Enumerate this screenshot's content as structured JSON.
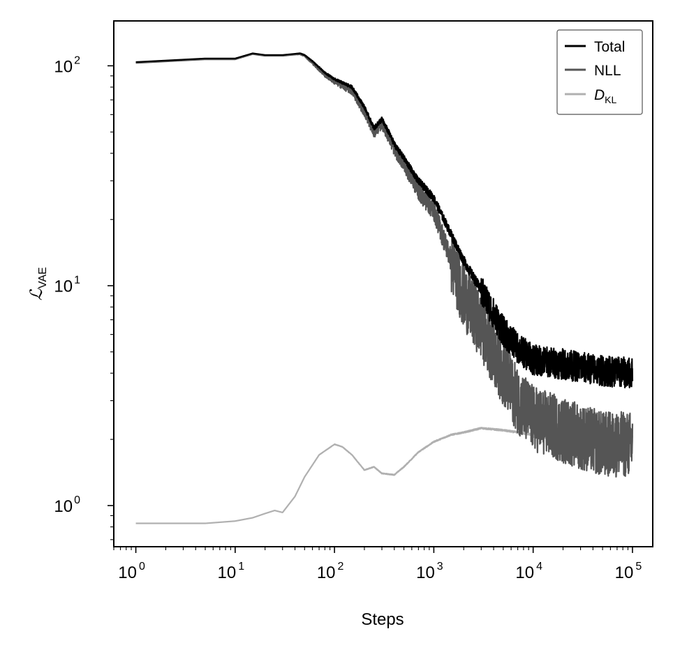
{
  "chart_data": {
    "type": "line",
    "xlabel": "Steps",
    "ylabel": {
      "symbol": "ℒ",
      "subscript": "VAE"
    },
    "x_scale": "log",
    "y_scale": "log",
    "xlim": [
      0.6,
      160000
    ],
    "ylim": [
      0.65,
      160
    ],
    "x_ticks": [
      {
        "value": 1,
        "base": "10",
        "exp": "0"
      },
      {
        "value": 10,
        "base": "10",
        "exp": "1"
      },
      {
        "value": 100,
        "base": "10",
        "exp": "2"
      },
      {
        "value": 1000,
        "base": "10",
        "exp": "3"
      },
      {
        "value": 10000,
        "base": "10",
        "exp": "4"
      },
      {
        "value": 100000,
        "base": "10",
        "exp": "5"
      }
    ],
    "y_ticks": [
      {
        "value": 1,
        "base": "10",
        "exp": "0"
      },
      {
        "value": 10,
        "base": "10",
        "exp": "1"
      },
      {
        "value": 100,
        "base": "10",
        "exp": "2"
      }
    ],
    "legend": {
      "position": "top-right"
    },
    "series": [
      {
        "name": "Total",
        "color": "#000000",
        "noise": 0.07,
        "noise_start": 3000,
        "x": [
          1,
          5,
          10,
          15,
          20,
          30,
          45,
          50,
          60,
          80,
          100,
          150,
          200,
          250,
          300,
          350,
          400,
          500,
          700,
          1000,
          1500,
          2000,
          3000,
          5000,
          7000,
          10000,
          20000,
          50000,
          100000
        ],
        "y": [
          104,
          108,
          108,
          114,
          112,
          112,
          114,
          112,
          105,
          93,
          87,
          80,
          65,
          52,
          57,
          50,
          44,
          38,
          30,
          25,
          17,
          13,
          9.5,
          6.2,
          5.2,
          4.6,
          4.4,
          4.1,
          4.0
        ]
      },
      {
        "name": "NLL",
        "color": "#555555",
        "noise": 0.15,
        "noise_start": 1500,
        "x": [
          1,
          5,
          10,
          15,
          20,
          30,
          45,
          50,
          60,
          80,
          100,
          150,
          200,
          250,
          300,
          350,
          400,
          500,
          700,
          1000,
          1500,
          2000,
          3000,
          5000,
          7000,
          10000,
          20000,
          50000,
          100000
        ],
        "y": [
          103,
          107,
          107,
          113,
          111,
          111,
          113,
          111,
          103,
          91,
          85,
          77,
          62,
          50,
          55,
          48,
          42,
          36,
          27,
          22,
          13,
          9,
          6.5,
          4,
          3,
          2.5,
          2.2,
          1.9,
          1.9
        ]
      },
      {
        "name": "D",
        "subscript": "KL",
        "color": "#b0b0b0",
        "noise": 0.012,
        "noise_start": 10000,
        "x": [
          1,
          5,
          10,
          15,
          20,
          25,
          30,
          40,
          50,
          70,
          100,
          120,
          150,
          200,
          250,
          300,
          400,
          500,
          700,
          1000,
          1500,
          2000,
          3000,
          5000,
          10000,
          20000,
          50000,
          100000
        ],
        "y": [
          0.83,
          0.83,
          0.85,
          0.88,
          0.92,
          0.95,
          0.93,
          1.1,
          1.35,
          1.7,
          1.9,
          1.85,
          1.7,
          1.45,
          1.5,
          1.4,
          1.38,
          1.5,
          1.75,
          1.95,
          2.1,
          2.15,
          2.25,
          2.2,
          2.1,
          2.05,
          2.05,
          2.05
        ]
      }
    ]
  }
}
